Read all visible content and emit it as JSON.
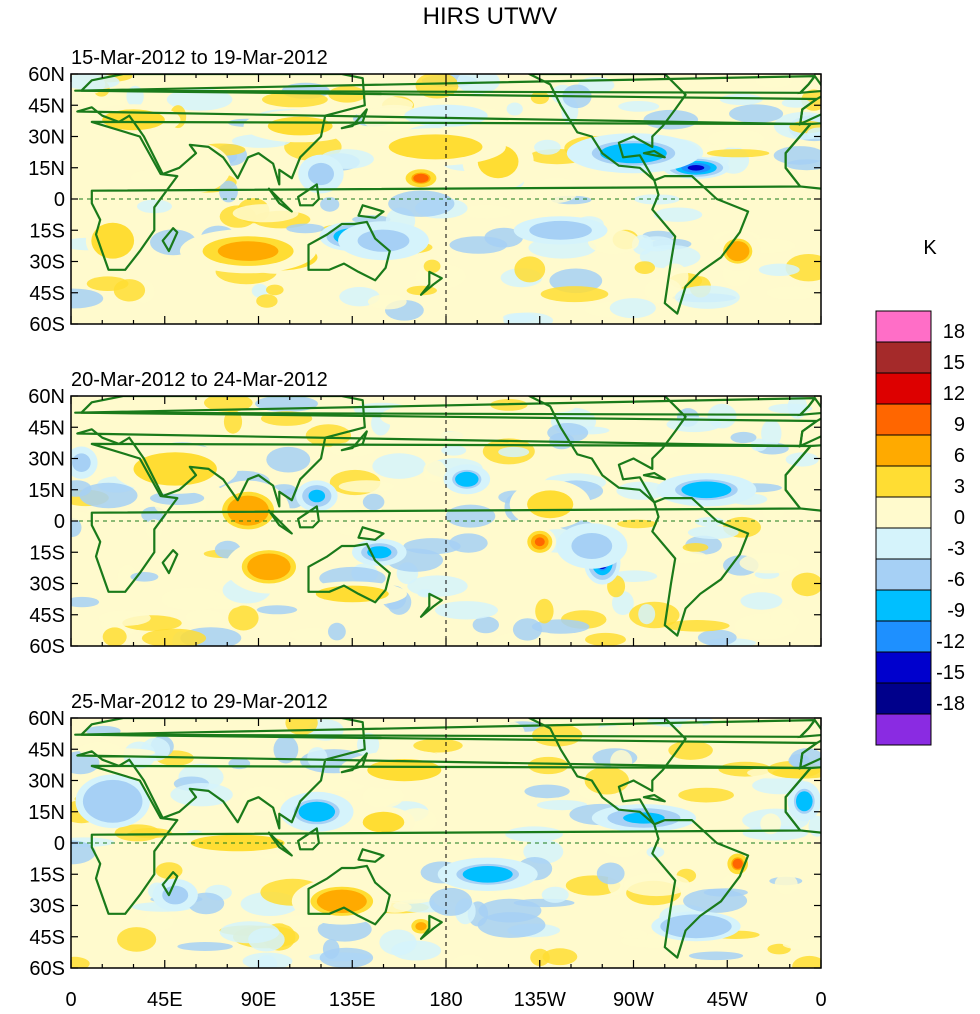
{
  "chart_data": {
    "type": "heatmap",
    "title": "HIRS UTWV",
    "unit": "K",
    "colorbar": {
      "labels": [
        "18",
        "15",
        "12",
        "9",
        "6",
        "3",
        "0",
        "-3",
        "-6",
        "-9",
        "-12",
        "-15",
        "-18"
      ],
      "colors": [
        "#ff6ec7",
        "#a52a2a",
        "#dd0000",
        "#ff6600",
        "#ffaa00",
        "#ffdd33",
        "#fffacd",
        "#d5f3fb",
        "#a6d0f5",
        "#00bfff",
        "#1e90ff",
        "#0000cd",
        "#00008b",
        "#8a2be2"
      ]
    },
    "x_ticks": [
      "0",
      "45E",
      "90E",
      "135E",
      "180",
      "135W",
      "90W",
      "45W",
      "0"
    ],
    "y_ticks": [
      "60N",
      "45N",
      "30N",
      "15N",
      "0",
      "15S",
      "30S",
      "45S",
      "60S"
    ],
    "xlim": [
      0,
      360
    ],
    "ylim": [
      -60,
      60
    ],
    "panels": [
      {
        "subtitle": "15-Mar-2012 to 19-Mar-2012",
        "features": [
          {
            "lon": 100,
            "lat": -28,
            "value": 14,
            "sx": 26,
            "sy": 9
          },
          {
            "lon": 85,
            "lat": -25,
            "value": 8,
            "sx": 40,
            "sy": 13
          },
          {
            "lon": 135,
            "lat": -18,
            "value": -13,
            "sx": 18,
            "sy": 8
          },
          {
            "lon": 150,
            "lat": -20,
            "value": -6,
            "sx": 28,
            "sy": 12
          },
          {
            "lon": 210,
            "lat": 14,
            "value": 14,
            "sx": 10,
            "sy": 10
          },
          {
            "lon": 205,
            "lat": 18,
            "value": 6,
            "sx": 22,
            "sy": 18
          },
          {
            "lon": 168,
            "lat": 10,
            "value": 10,
            "sx": 12,
            "sy": 7
          },
          {
            "lon": 175,
            "lat": 25,
            "value": 5,
            "sx": 45,
            "sy": 12
          },
          {
            "lon": 300,
            "lat": 15,
            "value": -15,
            "sx": 18,
            "sy": 6
          },
          {
            "lon": 270,
            "lat": 22,
            "value": -7,
            "sx": 40,
            "sy": 12
          },
          {
            "lon": 120,
            "lat": 12,
            "value": -6,
            "sx": 14,
            "sy": 12
          },
          {
            "lon": 110,
            "lat": 35,
            "value": 6,
            "sx": 35,
            "sy": 10
          },
          {
            "lon": 30,
            "lat": 38,
            "value": 5,
            "sx": 30,
            "sy": 10
          },
          {
            "lon": 320,
            "lat": -25,
            "value": 7,
            "sx": 14,
            "sy": 12
          },
          {
            "lon": 235,
            "lat": -15,
            "value": -5,
            "sx": 30,
            "sy": 9
          },
          {
            "lon": 20,
            "lat": -20,
            "value": 4,
            "sx": 18,
            "sy": 15
          },
          {
            "lon": 60,
            "lat": 15,
            "value": 3,
            "sx": 25,
            "sy": 18
          },
          {
            "lon": 180,
            "lat": 40,
            "value": -3,
            "sx": 30,
            "sy": 8
          }
        ]
      },
      {
        "subtitle": "20-Mar-2012 to 24-Mar-2012",
        "features": [
          {
            "lon": 78,
            "lat": 6,
            "value": 13,
            "sx": 10,
            "sy": 10
          },
          {
            "lon": 85,
            "lat": 5,
            "value": 7,
            "sx": 25,
            "sy": 18
          },
          {
            "lon": 100,
            "lat": -20,
            "value": 14,
            "sx": 12,
            "sy": 10
          },
          {
            "lon": 95,
            "lat": -22,
            "value": 7,
            "sx": 26,
            "sy": 16
          },
          {
            "lon": 135,
            "lat": -35,
            "value": 5,
            "sx": 35,
            "sy": 8
          },
          {
            "lon": 225,
            "lat": -10,
            "value": 12,
            "sx": 9,
            "sy": 8
          },
          {
            "lon": 230,
            "lat": 8,
            "value": 6,
            "sx": 25,
            "sy": 15
          },
          {
            "lon": 255,
            "lat": -20,
            "value": -13,
            "sx": 10,
            "sy": 12
          },
          {
            "lon": 250,
            "lat": -12,
            "value": -6,
            "sx": 22,
            "sy": 14
          },
          {
            "lon": 300,
            "lat": 14,
            "value": -15,
            "sx": 14,
            "sy": 6
          },
          {
            "lon": 305,
            "lat": 15,
            "value": -7,
            "sx": 30,
            "sy": 10
          },
          {
            "lon": 190,
            "lat": 20,
            "value": -7,
            "sx": 14,
            "sy": 9
          },
          {
            "lon": 148,
            "lat": -15,
            "value": -8,
            "sx": 16,
            "sy": 8
          },
          {
            "lon": 118,
            "lat": 12,
            "value": -9,
            "sx": 12,
            "sy": 9
          },
          {
            "lon": 50,
            "lat": 25,
            "value": 5,
            "sx": 40,
            "sy": 16
          },
          {
            "lon": 5,
            "lat": 28,
            "value": -6,
            "sx": 10,
            "sy": 10
          },
          {
            "lon": 175,
            "lat": 50,
            "value": 3,
            "sx": 40,
            "sy": 10
          }
        ]
      },
      {
        "subtitle": "25-Mar-2012 to 29-Mar-2012",
        "features": [
          {
            "lon": 52,
            "lat": -25,
            "value": -16,
            "sx": 6,
            "sy": 5
          },
          {
            "lon": 50,
            "lat": -25,
            "value": -6,
            "sx": 14,
            "sy": 10
          },
          {
            "lon": 115,
            "lat": 13,
            "value": -15,
            "sx": 8,
            "sy": 6
          },
          {
            "lon": 118,
            "lat": 15,
            "value": -7,
            "sx": 22,
            "sy": 12
          },
          {
            "lon": 158,
            "lat": 8,
            "value": 12,
            "sx": 7,
            "sy": 5
          },
          {
            "lon": 150,
            "lat": 10,
            "value": 5,
            "sx": 20,
            "sy": 10
          },
          {
            "lon": 130,
            "lat": -28,
            "value": 7,
            "sx": 30,
            "sy": 14
          },
          {
            "lon": 168,
            "lat": -40,
            "value": 9,
            "sx": 8,
            "sy": 6
          },
          {
            "lon": 320,
            "lat": -10,
            "value": 10,
            "sx": 8,
            "sy": 8
          },
          {
            "lon": 275,
            "lat": 12,
            "value": -9,
            "sx": 30,
            "sy": 8
          },
          {
            "lon": 200,
            "lat": -15,
            "value": -7,
            "sx": 30,
            "sy": 10
          },
          {
            "lon": 160,
            "lat": 35,
            "value": 6,
            "sx": 40,
            "sy": 12
          },
          {
            "lon": 80,
            "lat": 0,
            "value": 5,
            "sx": 45,
            "sy": 8
          },
          {
            "lon": 20,
            "lat": 20,
            "value": -4,
            "sx": 25,
            "sy": 18
          },
          {
            "lon": 300,
            "lat": -40,
            "value": -4,
            "sx": 30,
            "sy": 10
          },
          {
            "lon": 352,
            "lat": 20,
            "value": -7,
            "sx": 10,
            "sy": 12
          }
        ]
      }
    ]
  }
}
